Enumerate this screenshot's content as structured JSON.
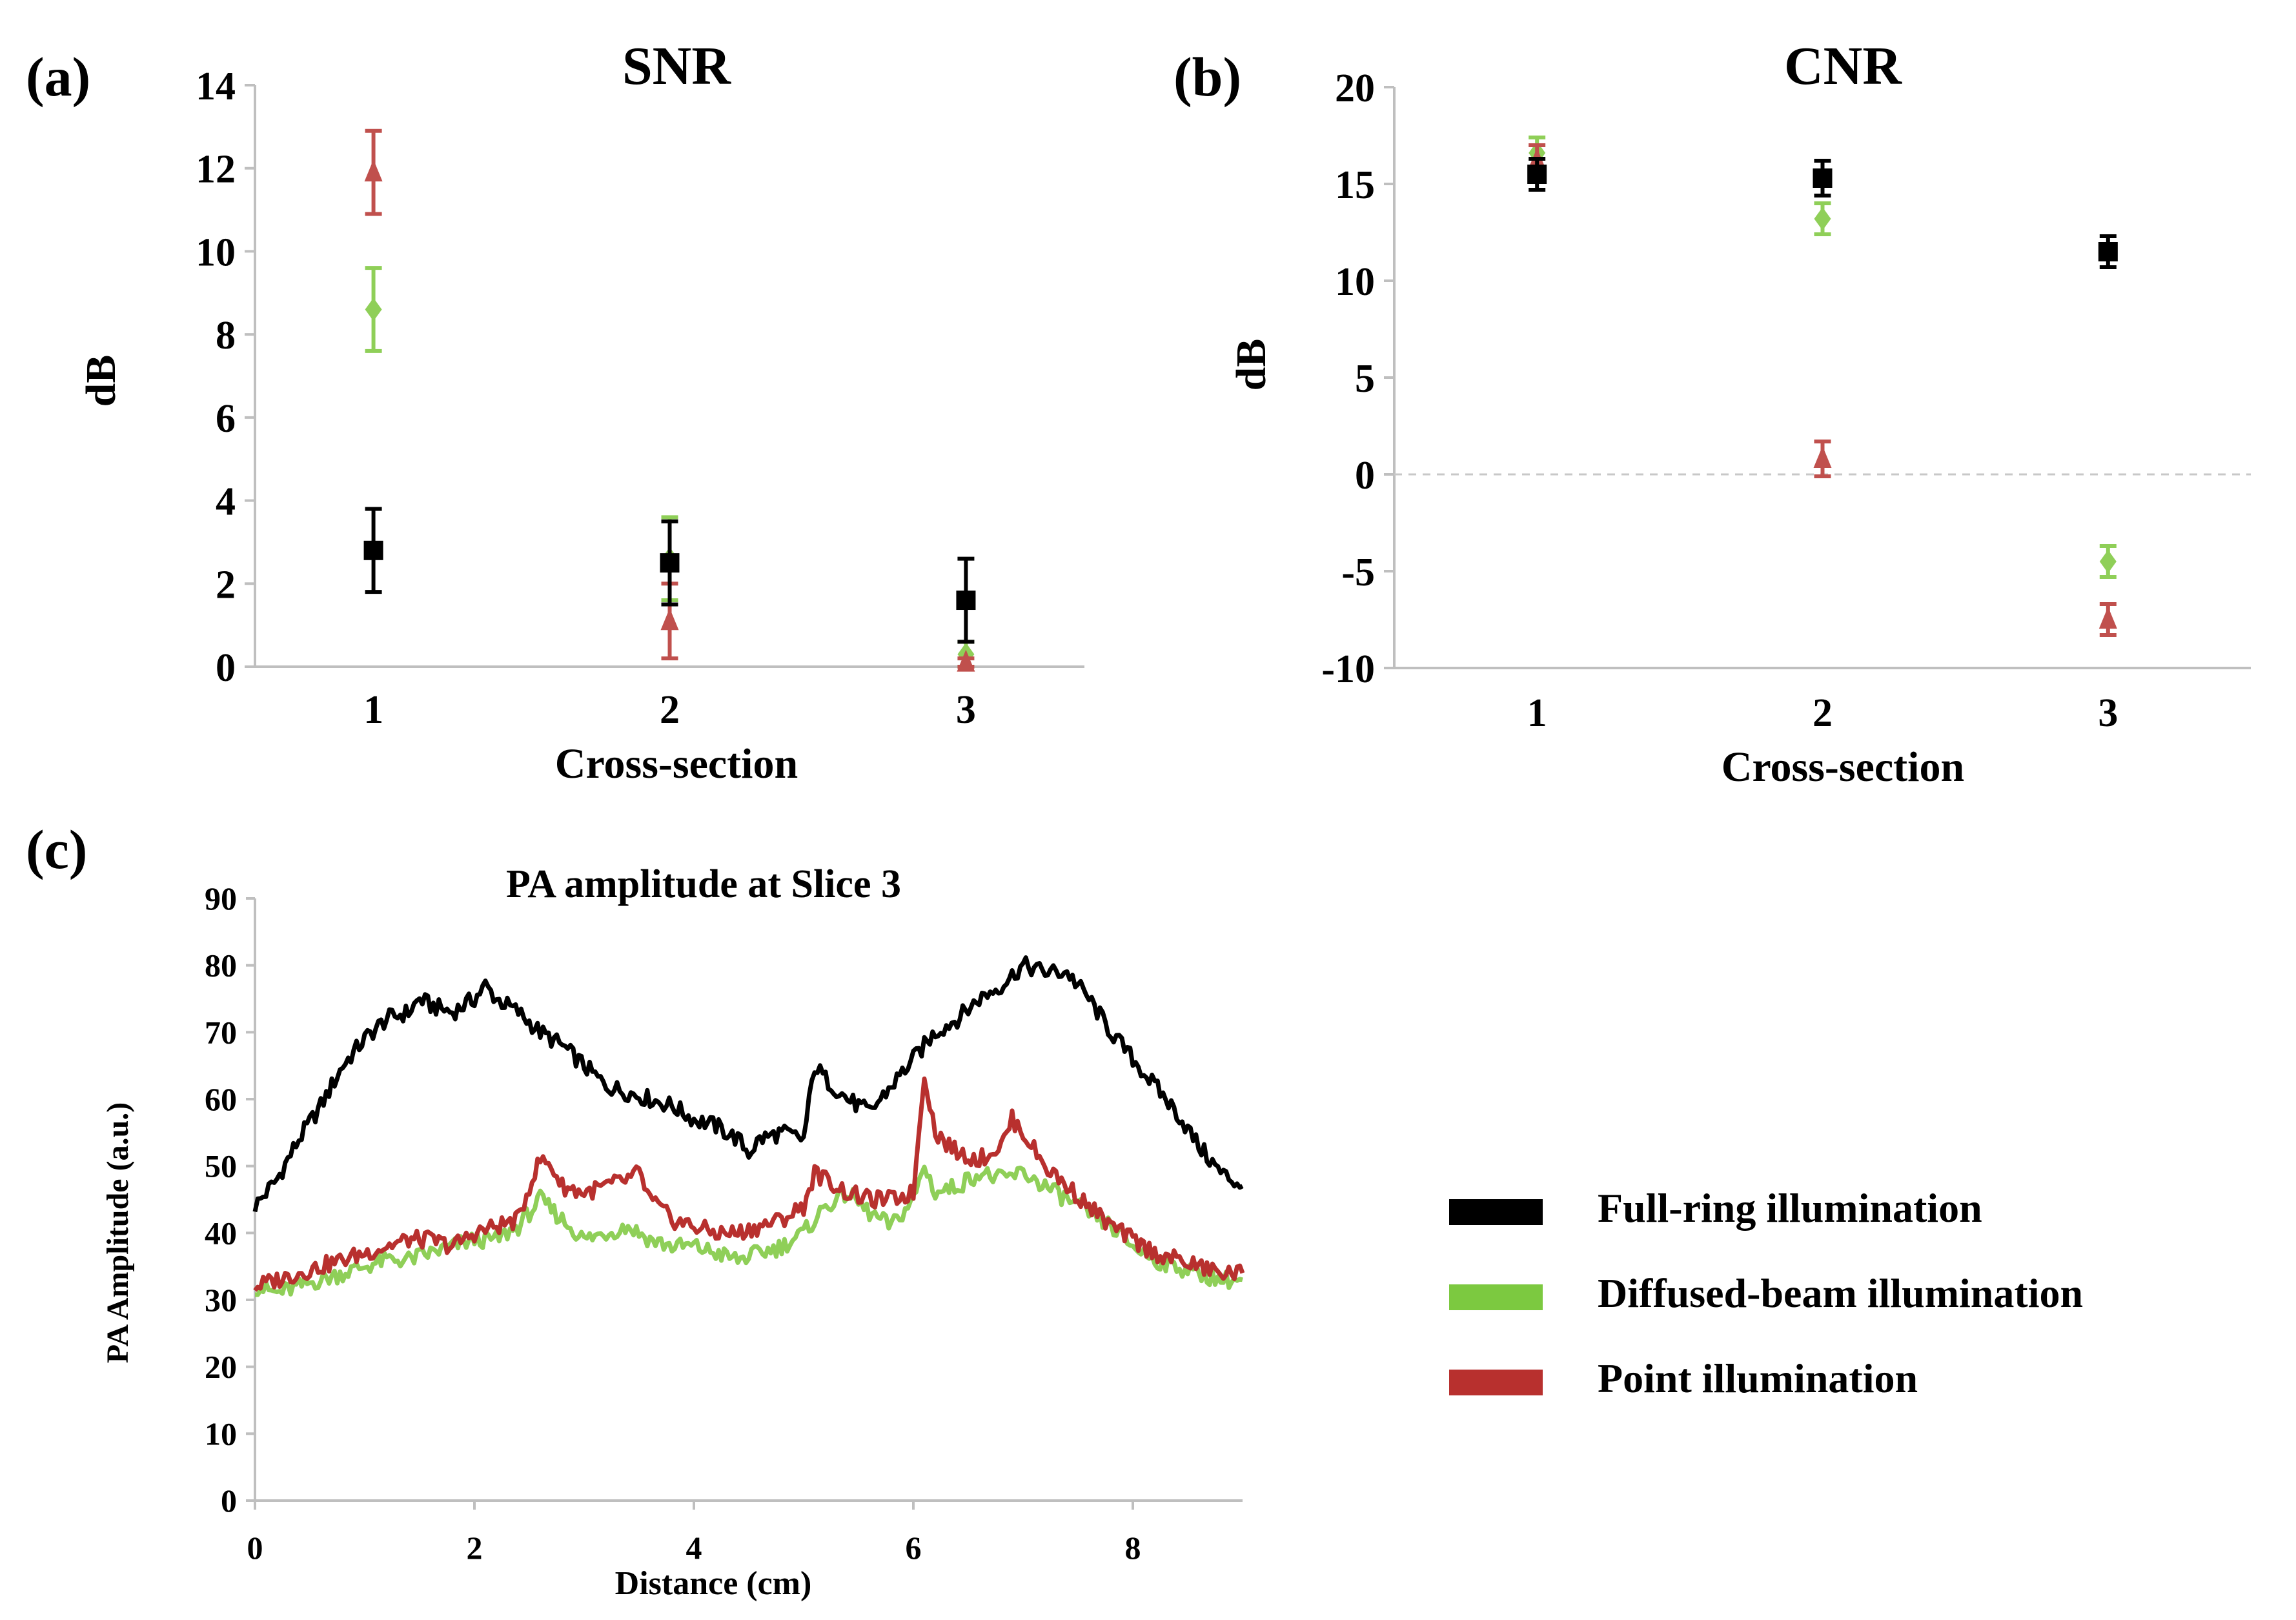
{
  "colors": {
    "full_ring": "#000000",
    "diffused": "#8fcf58",
    "point": "#c0504d",
    "point_line": "#b8302e",
    "diffused_line": "#7cc940",
    "axis": "#bfbfbf",
    "zero_line": "#c8c8c8"
  },
  "chart_data": [
    {
      "panel": "(a)",
      "type": "scatter",
      "title": "SNR",
      "xlabel": "Cross-section",
      "ylabel": "dB",
      "x": [
        1,
        2,
        3
      ],
      "xlim": [
        0.6,
        3.4
      ],
      "ylim": [
        0,
        14
      ],
      "yticks": [
        0,
        2,
        4,
        6,
        8,
        10,
        12,
        14
      ],
      "grid": false,
      "series": [
        {
          "key": "diffused",
          "marker": "diamond",
          "values": [
            8.6,
            2.6,
            0.3
          ],
          "errors": [
            1.0,
            1.0,
            0.3
          ]
        },
        {
          "key": "point",
          "marker": "triangle",
          "values": [
            11.9,
            1.1,
            0.1
          ],
          "errors": [
            1.0,
            0.9,
            0.1
          ]
        },
        {
          "key": "full_ring",
          "marker": "square",
          "values": [
            2.8,
            2.5,
            1.6
          ],
          "errors": [
            1.0,
            1.0,
            1.0
          ]
        }
      ]
    },
    {
      "panel": "(b)",
      "type": "scatter",
      "title": "CNR",
      "xlabel": "Cross-section",
      "ylabel": "dB",
      "x": [
        1,
        2,
        3
      ],
      "xlim": [
        0.5,
        3.5
      ],
      "ylim": [
        -10,
        20
      ],
      "yticks": [
        -10,
        -5,
        0,
        5,
        10,
        15,
        20
      ],
      "zero_line": true,
      "grid": false,
      "series": [
        {
          "key": "diffused",
          "marker": "diamond",
          "values": [
            16.6,
            13.2,
            -4.5
          ],
          "errors": [
            0.8,
            0.8,
            0.8
          ]
        },
        {
          "key": "point",
          "marker": "triangle",
          "values": [
            16.2,
            0.8,
            -7.5
          ],
          "errors": [
            0.8,
            0.9,
            0.8
          ]
        },
        {
          "key": "full_ring",
          "marker": "square",
          "values": [
            15.5,
            15.3,
            11.5
          ],
          "errors": [
            0.8,
            0.9,
            0.8
          ]
        }
      ]
    },
    {
      "panel": "(c)",
      "type": "line",
      "title": "PA amplitude at Slice 3",
      "xlabel": "Distance (cm)",
      "ylabel": "PA Amplitude (a.u.)",
      "xlim": [
        0,
        9
      ],
      "ylim": [
        0,
        90
      ],
      "xticks": [
        0,
        2,
        4,
        6,
        8
      ],
      "yticks": [
        0,
        10,
        20,
        30,
        40,
        50,
        60,
        70,
        80,
        90
      ],
      "legend_position": "right",
      "series": [
        {
          "key": "full_ring",
          "name": "Full-ring illumination",
          "x": [
            0,
            0.2,
            0.4,
            0.6,
            0.8,
            1.0,
            1.2,
            1.4,
            1.5,
            1.6,
            1.8,
            2.0,
            2.1,
            2.2,
            2.4,
            2.6,
            2.8,
            3.0,
            3.2,
            3.4,
            3.6,
            3.8,
            4.0,
            4.2,
            4.4,
            4.5,
            4.6,
            4.8,
            5.0,
            5.1,
            5.2,
            5.4,
            5.6,
            5.8,
            6.0,
            6.2,
            6.4,
            6.6,
            6.8,
            7.0,
            7.2,
            7.4,
            7.6,
            7.8,
            8.0,
            8.2,
            8.4,
            8.6,
            8.8,
            9.0
          ],
          "y": [
            44,
            48,
            54,
            59,
            65,
            69,
            72,
            73,
            75,
            74,
            73,
            75,
            77,
            75,
            73,
            70,
            68,
            65,
            62,
            61,
            60,
            59,
            57,
            56,
            54,
            52,
            54,
            55,
            54,
            65,
            63,
            60,
            58,
            62,
            66,
            70,
            72,
            75,
            77,
            80,
            79,
            79,
            75,
            70,
            66,
            62,
            58,
            53,
            49,
            47
          ]
        },
        {
          "key": "diffused",
          "name": "Diffused-beam illumination",
          "x": [
            0,
            0.2,
            0.4,
            0.6,
            0.8,
            1.0,
            1.2,
            1.4,
            1.6,
            1.8,
            2.0,
            2.2,
            2.4,
            2.6,
            2.8,
            3.0,
            3.2,
            3.4,
            3.6,
            3.8,
            4.0,
            4.2,
            4.4,
            4.6,
            4.8,
            5.0,
            5.2,
            5.4,
            5.6,
            5.8,
            6.0,
            6.1,
            6.2,
            6.4,
            6.6,
            6.8,
            7.0,
            7.2,
            7.4,
            7.6,
            7.8,
            8.0,
            8.2,
            8.4,
            8.6,
            8.8,
            9.0
          ],
          "y": [
            32,
            31,
            32,
            33,
            34,
            35,
            36,
            36,
            37,
            38,
            39,
            39,
            41,
            45,
            42,
            39,
            40,
            41,
            39,
            38,
            38,
            37,
            36,
            37,
            38,
            40,
            44,
            46,
            43,
            41,
            45,
            50,
            46,
            47,
            49,
            48,
            49,
            47,
            45,
            43,
            41,
            38,
            36,
            35,
            34,
            33,
            33
          ]
        },
        {
          "key": "point_line",
          "name": "Point illumination",
          "x": [
            0,
            0.2,
            0.4,
            0.6,
            0.8,
            1.0,
            1.2,
            1.4,
            1.6,
            1.8,
            2.0,
            2.2,
            2.4,
            2.5,
            2.6,
            2.7,
            2.8,
            3.0,
            3.2,
            3.4,
            3.5,
            3.6,
            3.8,
            4.0,
            4.2,
            4.4,
            4.6,
            4.8,
            5.0,
            5.1,
            5.2,
            5.4,
            5.6,
            5.8,
            6.0,
            6.1,
            6.2,
            6.4,
            6.6,
            6.8,
            6.9,
            7.0,
            7.2,
            7.4,
            7.6,
            7.8,
            8.0,
            8.2,
            8.4,
            8.6,
            8.8,
            9.0
          ],
          "y": [
            32,
            33,
            34,
            35,
            36,
            37,
            38,
            39,
            39,
            38,
            40,
            41,
            42,
            47,
            51,
            50,
            47,
            46,
            47,
            48,
            49,
            45,
            42,
            41,
            40,
            40,
            41,
            42,
            44,
            49,
            48,
            46,
            45,
            45,
            46,
            64,
            55,
            52,
            51,
            53,
            57,
            55,
            50,
            47,
            44,
            41,
            39,
            37,
            36,
            35,
            34,
            34
          ]
        }
      ]
    }
  ],
  "legend": [
    {
      "key": "full_ring",
      "label": "Full-ring illumination"
    },
    {
      "key": "diffused_line",
      "label": "Diffused-beam illumination"
    },
    {
      "key": "point_line",
      "label": "Point illumination"
    }
  ]
}
